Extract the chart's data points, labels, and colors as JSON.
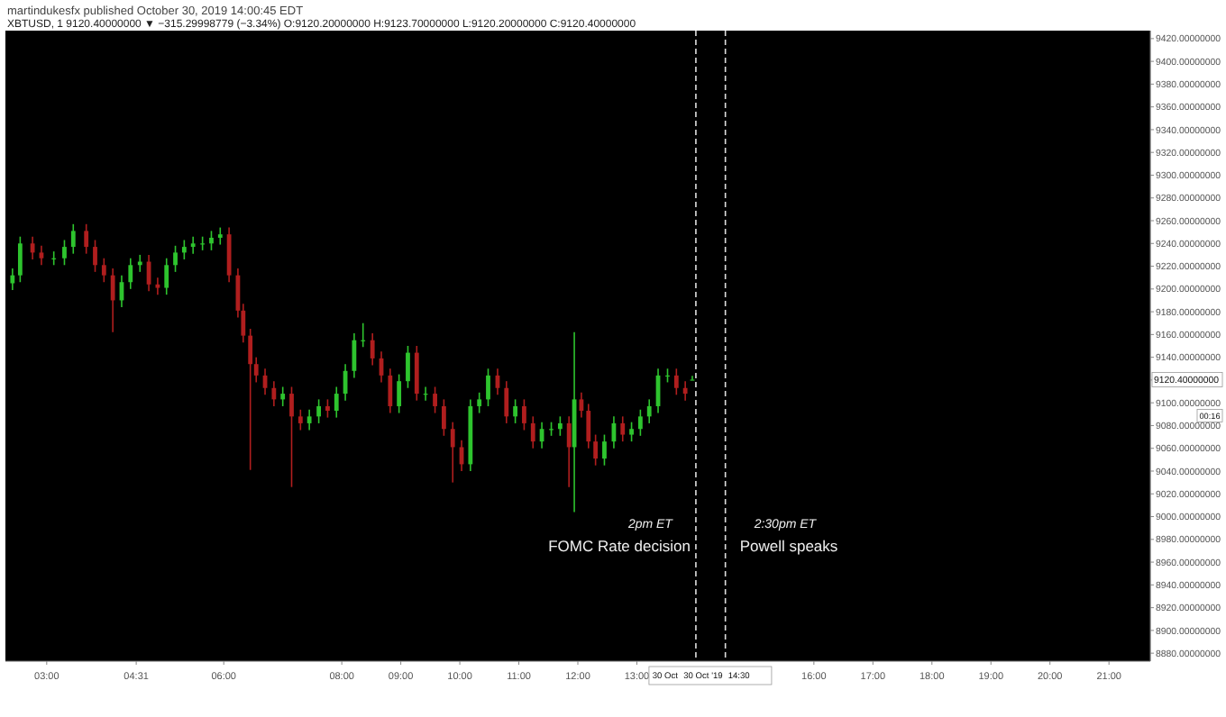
{
  "chart_data": {
    "type": "candlestick",
    "title": "martindukesfx published October 30, 2019 14:00:45 EDT",
    "subtitle": "XBTUSD, 1  9120.40000000 ▼ −315.29998779 (−3.34%) O:9120.20000000 H:9123.70000000 L:9120.20000000 C:9120.40000000",
    "x": [
      2.42,
      2.55,
      2.76,
      2.91,
      3.12,
      3.3,
      3.45,
      3.67,
      3.82,
      3.97,
      4.12,
      4.27,
      4.42,
      4.58,
      4.73,
      4.88,
      5.03,
      5.18,
      5.33,
      5.48,
      5.64,
      5.79,
      5.94,
      6.09,
      6.24,
      6.33,
      6.45,
      6.55,
      6.7,
      6.85,
      7.0,
      7.15,
      7.3,
      7.45,
      7.61,
      7.76,
      7.91,
      8.06,
      8.21,
      8.36,
      8.52,
      8.67,
      8.82,
      8.97,
      9.12,
      9.27,
      9.42,
      9.58,
      9.73,
      9.88,
      10.03,
      10.18,
      10.33,
      10.48,
      10.64,
      10.79,
      10.94,
      11.09,
      11.24,
      11.39,
      11.55,
      11.7,
      11.85,
      11.94,
      12.06,
      12.18,
      12.3,
      12.45,
      12.61,
      12.76,
      12.91,
      13.06,
      13.21,
      13.36,
      13.52,
      13.67,
      13.82,
      13.94
    ],
    "ohlc": [
      [
        9205,
        9218,
        9199,
        9212
      ],
      [
        9212,
        9246,
        9206,
        9240
      ],
      [
        9240,
        9246,
        9226,
        9232
      ],
      [
        9232,
        9238,
        9221,
        9227
      ],
      [
        9227,
        9233,
        9221,
        9227
      ],
      [
        9227,
        9243,
        9221,
        9237
      ],
      [
        9237,
        9257,
        9231,
        9251
      ],
      [
        9251,
        9257,
        9231,
        9237
      ],
      [
        9237,
        9243,
        9215,
        9221
      ],
      [
        9221,
        9227,
        9206,
        9212
      ],
      [
        9212,
        9218,
        9162,
        9190
      ],
      [
        9190,
        9212,
        9184,
        9206
      ],
      [
        9206,
        9227,
        9200,
        9221
      ],
      [
        9221,
        9230,
        9215,
        9224
      ],
      [
        9224,
        9230,
        9198,
        9204
      ],
      [
        9204,
        9210,
        9195,
        9201
      ],
      [
        9201,
        9227,
        9195,
        9221
      ],
      [
        9221,
        9238,
        9215,
        9232
      ],
      [
        9232,
        9243,
        9226,
        9237
      ],
      [
        9237,
        9246,
        9231,
        9240
      ],
      [
        9240,
        9246,
        9234,
        9240
      ],
      [
        9240,
        9251,
        9234,
        9245
      ],
      [
        9245,
        9254,
        9239,
        9248
      ],
      [
        9248,
        9254,
        9206,
        9212
      ],
      [
        9212,
        9218,
        9175,
        9181
      ],
      [
        9181,
        9187,
        9153,
        9159
      ],
      [
        9159,
        9165,
        9041,
        9134
      ],
      [
        9134,
        9140,
        9118,
        9124
      ],
      [
        9124,
        9130,
        9107,
        9113
      ],
      [
        9113,
        9119,
        9097,
        9103
      ],
      [
        9103,
        9114,
        9097,
        9108
      ],
      [
        9108,
        9114,
        9026,
        9088
      ],
      [
        9088,
        9094,
        9076,
        9082
      ],
      [
        9082,
        9094,
        9076,
        9088
      ],
      [
        9088,
        9103,
        9082,
        9097
      ],
      [
        9097,
        9103,
        9087,
        9093
      ],
      [
        9093,
        9114,
        9087,
        9108
      ],
      [
        9108,
        9134,
        9102,
        9128
      ],
      [
        9128,
        9161,
        9122,
        9155
      ],
      [
        9155,
        9170,
        9149,
        9155
      ],
      [
        9155,
        9161,
        9133,
        9139
      ],
      [
        9139,
        9145,
        9118,
        9124
      ],
      [
        9124,
        9130,
        9091,
        9097
      ],
      [
        9097,
        9125,
        9091,
        9119
      ],
      [
        9119,
        9150,
        9113,
        9144
      ],
      [
        9144,
        9150,
        9102,
        9108
      ],
      [
        9108,
        9114,
        9102,
        9108
      ],
      [
        9108,
        9114,
        9091,
        9097
      ],
      [
        9097,
        9103,
        9071,
        9077
      ],
      [
        9077,
        9083,
        9030,
        9061
      ],
      [
        9061,
        9067,
        9040,
        9046
      ],
      [
        9046,
        9103,
        9040,
        9097
      ],
      [
        9097,
        9109,
        9091,
        9103
      ],
      [
        9103,
        9130,
        9097,
        9124
      ],
      [
        9124,
        9130,
        9107,
        9113
      ],
      [
        9113,
        9119,
        9082,
        9088
      ],
      [
        9088,
        9103,
        9082,
        9097
      ],
      [
        9097,
        9103,
        9076,
        9082
      ],
      [
        9082,
        9088,
        9060,
        9066
      ],
      [
        9066,
        9083,
        9060,
        9077
      ],
      [
        9077,
        9083,
        9071,
        9077
      ],
      [
        9077,
        9088,
        9071,
        9082
      ],
      [
        9082,
        9088,
        9026,
        9061
      ],
      [
        9061,
        9162,
        9004,
        9103
      ],
      [
        9103,
        9109,
        9087,
        9093
      ],
      [
        9093,
        9099,
        9060,
        9066
      ],
      [
        9066,
        9072,
        9045,
        9051
      ],
      [
        9051,
        9072,
        9045,
        9066
      ],
      [
        9066,
        9088,
        9060,
        9082
      ],
      [
        9082,
        9088,
        9066,
        9072
      ],
      [
        9072,
        9083,
        9066,
        9077
      ],
      [
        9077,
        9094,
        9071,
        9088
      ],
      [
        9088,
        9103,
        9082,
        9097
      ],
      [
        9097,
        9130,
        9091,
        9124
      ],
      [
        9124,
        9130,
        9118,
        9124
      ],
      [
        9124,
        9130,
        9107,
        9113
      ],
      [
        9113,
        9119,
        9102,
        9108
      ],
      [
        9120.2,
        9123.7,
        9120.2,
        9120.4
      ]
    ],
    "xlim": [
      2.3,
      21.7
    ],
    "xticks": [
      {
        "value": 3,
        "label": "03:00"
      },
      {
        "value": 4.5167,
        "label": "04:31"
      },
      {
        "value": 6,
        "label": "06:00"
      },
      {
        "value": 8,
        "label": "08:00"
      },
      {
        "value": 9,
        "label": "09:00"
      },
      {
        "value": 10,
        "label": "10:00"
      },
      {
        "value": 11,
        "label": "11:00"
      },
      {
        "value": 12,
        "label": "12:00"
      },
      {
        "value": 13,
        "label": "13:00"
      },
      {
        "value": 16,
        "label": "16:00"
      },
      {
        "value": 17,
        "label": "17:00"
      },
      {
        "value": 18,
        "label": "18:00"
      },
      {
        "value": 19,
        "label": "19:00"
      },
      {
        "value": 20,
        "label": "20:00"
      },
      {
        "value": 21,
        "label": "21:00"
      }
    ],
    "ylim": [
      8873,
      9427
    ],
    "yticks": [
      {
        "value": 8880,
        "label": "8880.00000000"
      },
      {
        "value": 8900,
        "label": "8900.00000000"
      },
      {
        "value": 8920,
        "label": "8920.00000000"
      },
      {
        "value": 8940,
        "label": "8940.00000000"
      },
      {
        "value": 8960,
        "label": "8960.00000000"
      },
      {
        "value": 8980,
        "label": "8980.00000000"
      },
      {
        "value": 9000,
        "label": "9000.00000000"
      },
      {
        "value": 9020,
        "label": "9020.00000000"
      },
      {
        "value": 9040,
        "label": "9040.00000000"
      },
      {
        "value": 9060,
        "label": "9060.00000000"
      },
      {
        "value": 9080,
        "label": "9080.00000000"
      },
      {
        "value": 9100,
        "label": "9100.00000000"
      },
      {
        "value": 9120,
        "label": null
      },
      {
        "value": 9140,
        "label": "9140.00000000"
      },
      {
        "value": 9160,
        "label": "9160.00000000"
      },
      {
        "value": 9180,
        "label": "9180.00000000"
      },
      {
        "value": 9200,
        "label": "9200.00000000"
      },
      {
        "value": 9220,
        "label": "9220.00000000"
      },
      {
        "value": 9240,
        "label": "9240.00000000"
      },
      {
        "value": 9260,
        "label": "9260.00000000"
      },
      {
        "value": 9280,
        "label": "9280.00000000"
      },
      {
        "value": 9300,
        "label": "9300.00000000"
      },
      {
        "value": 9320,
        "label": "9320.00000000"
      },
      {
        "value": 9340,
        "label": "9340.00000000"
      },
      {
        "value": 9360,
        "label": "9360.00000000"
      },
      {
        "value": 9380,
        "label": "9380.00000000"
      },
      {
        "value": 9400,
        "label": "9400.00000000"
      },
      {
        "value": 9420,
        "label": "9420.00000000"
      }
    ],
    "ref_lines": [
      {
        "axis": "x",
        "value": 14,
        "label": "FOMC Rate decision",
        "line_style": "dashed",
        "color": "#dddddd"
      },
      {
        "axis": "x",
        "value": 14.5,
        "label": "Powell speaks",
        "line_style": "dashed",
        "color": "#dddddd"
      }
    ],
    "annotations": [
      {
        "text": "2pm ET",
        "x": 14,
        "y": 8990
      },
      {
        "text": "2:30pm ET",
        "x": 14.5,
        "y": 8990
      },
      "9120.40000000",
      "00:16",
      "30 Oct",
      "30 Oct '19",
      "14:30"
    ],
    "grid": false
  }
}
